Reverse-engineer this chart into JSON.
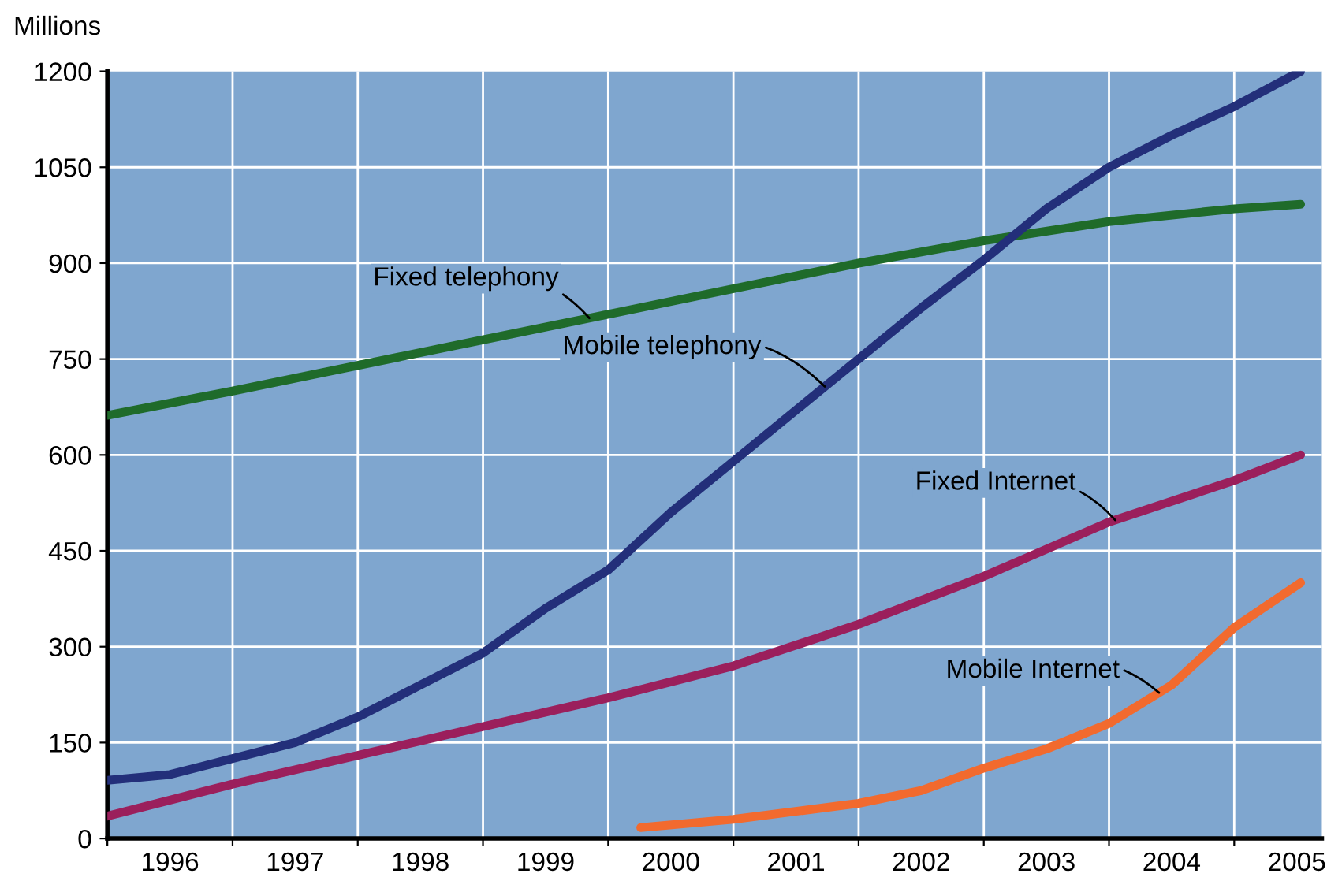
{
  "chart_data": {
    "type": "line",
    "ylabel": "Millions",
    "xlim": [
      1996,
      2005.7
    ],
    "ylim": [
      0,
      1200
    ],
    "yticks": [
      0,
      150,
      300,
      450,
      600,
      750,
      900,
      1050,
      1200
    ],
    "xticks": [
      {
        "value": 1996,
        "label": null
      },
      {
        "value": 1996.5,
        "label": "1996"
      },
      {
        "value": 1997,
        "label": null
      },
      {
        "value": 1997.5,
        "label": "1997"
      },
      {
        "value": 1998,
        "label": null
      },
      {
        "value": 1998.5,
        "label": "1998"
      },
      {
        "value": 1999,
        "label": null
      },
      {
        "value": 1999.5,
        "label": "1999"
      },
      {
        "value": 2000,
        "label": null
      },
      {
        "value": 2000.5,
        "label": "2000"
      },
      {
        "value": 2001,
        "label": null
      },
      {
        "value": 2001.5,
        "label": "2001"
      },
      {
        "value": 2002,
        "label": null
      },
      {
        "value": 2002.5,
        "label": "2002"
      },
      {
        "value": 2003,
        "label": null
      },
      {
        "value": 2003.5,
        "label": "2003"
      },
      {
        "value": 2004,
        "label": null
      },
      {
        "value": 2004.5,
        "label": "2004"
      },
      {
        "value": 2005,
        "label": null
      },
      {
        "value": 2005.5,
        "label": "2005"
      }
    ],
    "grid": true,
    "marker": "none",
    "line_style": "solid",
    "series": [
      {
        "color": "#1f6b2a",
        "x": [
          1996,
          1997,
          1998,
          1999,
          2000,
          2001,
          2002,
          2003,
          2004,
          2005,
          2005.53
        ],
        "values": [
          662,
          700,
          740,
          780,
          820,
          860,
          900,
          935,
          965,
          985,
          992
        ]
      },
      {
        "color": "#232f7a",
        "x": [
          1996,
          1996.5,
          1997,
          1997.5,
          1998,
          1998.5,
          1999,
          1999.5,
          2000,
          2000.5,
          2001,
          2001.5,
          2002,
          2002.5,
          2003,
          2003.5,
          2004,
          2004.5,
          2005,
          2005.53
        ],
        "values": [
          91,
          100,
          125,
          150,
          190,
          240,
          290,
          360,
          420,
          510,
          590,
          670,
          750,
          830,
          905,
          985,
          1050,
          1100,
          1145,
          1200
        ]
      },
      {
        "color": "#9b1f5c",
        "x": [
          1996,
          1997,
          1998,
          1999,
          2000,
          2001,
          2002,
          2003,
          2004,
          2005,
          2005.53
        ],
        "values": [
          35,
          85,
          130,
          175,
          220,
          270,
          335,
          410,
          495,
          560,
          600
        ]
      },
      {
        "color": "#f26a2e",
        "x": [
          2000.26,
          2001,
          2002,
          2002.5,
          2003,
          2003.5,
          2004,
          2004.5,
          2005,
          2005.53
        ],
        "values": [
          17,
          30,
          55,
          75,
          110,
          140,
          180,
          240,
          330,
          400
        ]
      }
    ],
    "annotations": [
      {
        "text": "Fixed telephony",
        "x": 1999.85,
        "y": 814
      },
      {
        "text": "Mobile telephony",
        "x": 2001.73,
        "y": 707
      },
      {
        "text": "Fixed Internet",
        "x": 2004.05,
        "y": 498
      },
      {
        "text": "Mobile Internet",
        "x": 2004.4,
        "y": 228
      }
    ]
  }
}
